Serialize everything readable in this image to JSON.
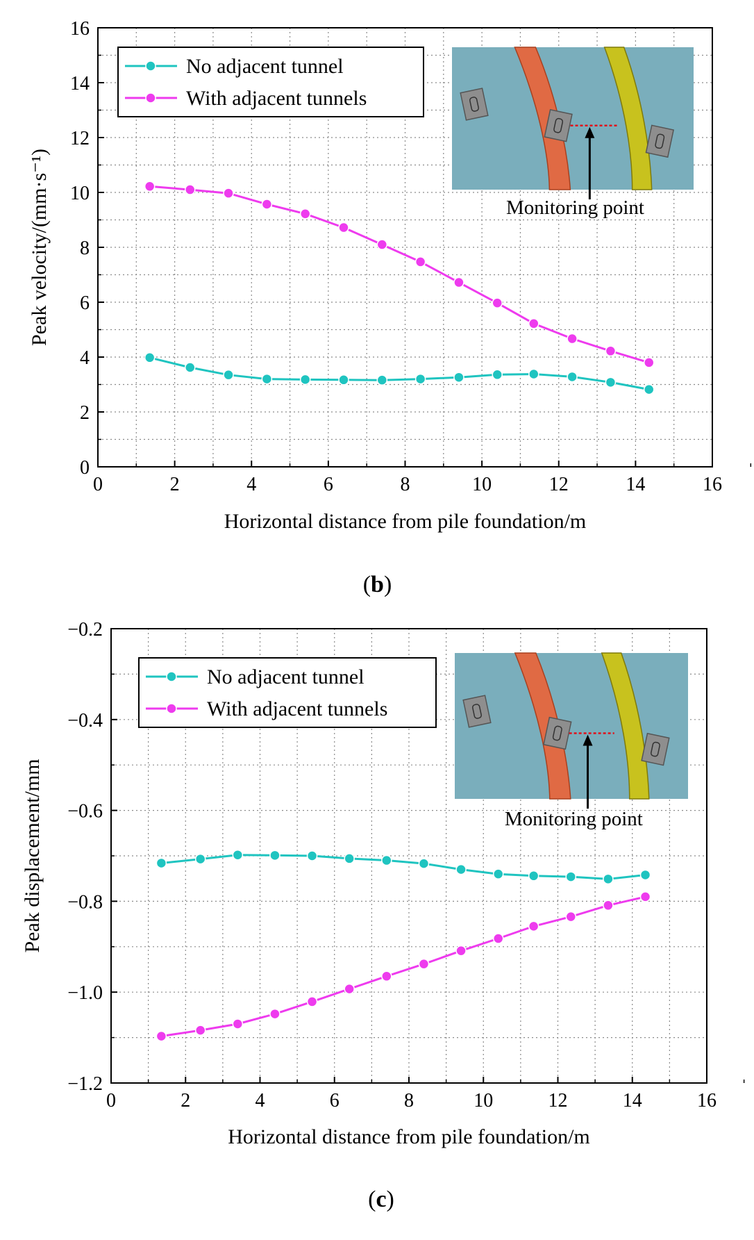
{
  "chart_data": [
    {
      "type": "line",
      "panel": "b",
      "caption_letter": "b",
      "xlabel": "Horizontal distance from pile foundation/m",
      "ylabel": "Peak velocity/(mm·s⁻¹)",
      "xlim": [
        0,
        16
      ],
      "ylim": [
        0,
        16
      ],
      "xticks": [
        0,
        2,
        4,
        6,
        8,
        10,
        12,
        14,
        16
      ],
      "yticks": [
        0,
        2,
        4,
        6,
        8,
        10,
        12,
        14,
        16
      ],
      "grid": true,
      "legend_position": "top-left",
      "x": [
        1.35,
        2.4,
        3.4,
        4.4,
        5.4,
        6.4,
        7.4,
        8.4,
        9.4,
        10.4,
        11.35,
        12.35,
        13.35,
        14.35
      ],
      "series": [
        {
          "name": "No adjacent tunnel",
          "color": "#1fc4c0",
          "values": [
            3.98,
            3.62,
            3.35,
            3.2,
            3.18,
            3.17,
            3.16,
            3.2,
            3.26,
            3.36,
            3.38,
            3.28,
            3.08,
            2.82
          ]
        },
        {
          "name": "With adjacent tunnels",
          "color": "#ee3bee",
          "values": [
            10.22,
            10.1,
            9.97,
            9.57,
            9.22,
            8.72,
            8.1,
            7.47,
            6.72,
            5.97,
            5.22,
            4.67,
            4.22,
            3.8
          ]
        }
      ],
      "inset_label": "Monitoring point"
    },
    {
      "type": "line",
      "panel": "c",
      "caption_letter": "c",
      "xlabel": "Horizontal distance from pile foundation/m",
      "ylabel": "Peak displacement/mm",
      "xlim": [
        0,
        16
      ],
      "ylim": [
        -1.2,
        -0.2
      ],
      "xticks": [
        0,
        2,
        4,
        6,
        8,
        10,
        12,
        14,
        16
      ],
      "yticks": [
        -1.2,
        -1.0,
        -0.8,
        -0.6,
        -0.4,
        -0.2
      ],
      "ytick_labels": [
        "−1.2",
        "−1.0",
        "−0.8",
        "−0.6",
        "−0.4",
        "−0.2"
      ],
      "grid": true,
      "legend_position": "top-left",
      "x": [
        1.35,
        2.4,
        3.4,
        4.4,
        5.4,
        6.4,
        7.4,
        8.4,
        9.4,
        10.4,
        11.35,
        12.35,
        13.35,
        14.35
      ],
      "series": [
        {
          "name": "No adjacent tunnel",
          "color": "#1fc4c0",
          "values": [
            -0.716,
            -0.707,
            -0.698,
            -0.699,
            -0.7,
            -0.706,
            -0.71,
            -0.717,
            -0.73,
            -0.74,
            -0.744,
            -0.746,
            -0.751,
            -0.742
          ]
        },
        {
          "name": "With adjacent tunnels",
          "color": "#ee3bee",
          "values": [
            -1.097,
            -1.084,
            -1.07,
            -1.048,
            -1.021,
            -0.993,
            -0.965,
            -0.938,
            -0.909,
            -0.882,
            -0.855,
            -0.834,
            -0.809,
            -0.79
          ]
        }
      ],
      "inset_label": "Monitoring point"
    }
  ]
}
